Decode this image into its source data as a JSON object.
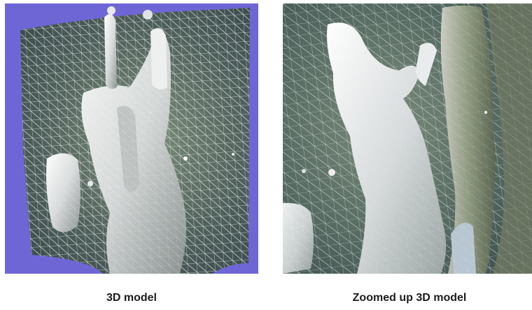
{
  "figures": [
    {
      "caption": "3D model",
      "background_color": "#6f66d6",
      "surface_color": "#4e5f5a",
      "mesh_color": "#e6edf0",
      "highlight_color": "#f2f2f2"
    },
    {
      "caption": "Zoomed up 3D model",
      "background_color": "#475a56",
      "surface_color": "#52675f",
      "mesh_color": "#e6edf0",
      "highlight_color": "#f2f2f2"
    }
  ]
}
